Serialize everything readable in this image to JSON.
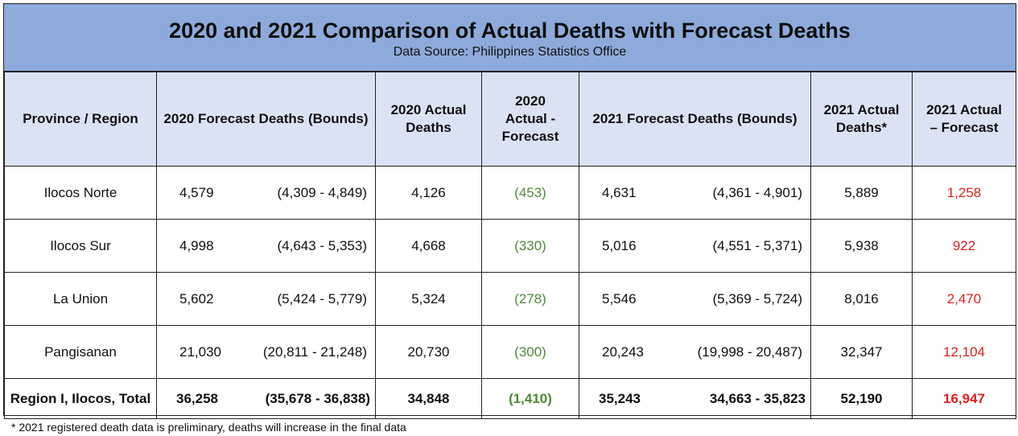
{
  "title": "2020 and 2021 Comparison of Actual Deaths with Forecast Deaths",
  "subtitle": "Data Source: Philippines Statistics Office",
  "headers": {
    "region": "Province / Region",
    "forecast_2020": "2020 Forecast Deaths (Bounds)",
    "actual_2020": "2020 Actual Deaths",
    "diff_2020": "2020 Actual - Forecast",
    "forecast_2021": "2021 Forecast  Deaths (Bounds)",
    "actual_2021": "2021 Actual Deaths*",
    "diff_2021": "2021 Actual – Forecast"
  },
  "rows": [
    {
      "region": "Ilocos Norte",
      "f2020": "4,579",
      "b2020": "(4,309  -  4,849)",
      "a2020": "4,126",
      "d2020": "(453)",
      "f2021": "4,631",
      "b2021": "(4,361  -  4,901)",
      "a2021": "5,889",
      "d2021": "1,258"
    },
    {
      "region": "Ilocos Sur",
      "f2020": "4,998",
      "b2020": "(4,643  -  5,353)",
      "a2020": "4,668",
      "d2020": "(330)",
      "f2021": "5,016",
      "b2021": "(4,551  -  5,371)",
      "a2021": "5,938",
      "d2021": "922"
    },
    {
      "region": "La Union",
      "f2020": "5,602",
      "b2020": "(5,424  -  5,779)",
      "a2020": "5,324",
      "d2020": "(278)",
      "f2021": "5,546",
      "b2021": "(5,369  -  5,724)",
      "a2021": "8,016",
      "d2021": "2,470"
    },
    {
      "region": "Pangisanan",
      "f2020": "21,030",
      "b2020": "(20,811  - 21,248)",
      "a2020": "20,730",
      "d2020": "(300)",
      "f2021": "20,243",
      "b2021": "(19,998  - 20,487)",
      "a2021": "32,347",
      "d2021": "12,104"
    }
  ],
  "total": {
    "region": "Region I, Ilocos, Total",
    "f2020": "36,258",
    "b2020": "(35,678 - 36,838)",
    "a2020": "34,848",
    "d2020": "(1,410)",
    "f2021": "35,243",
    "b2021": "34,663 - 35,823",
    "a2021": "52,190",
    "d2021": "16,947"
  },
  "footnote": "* 2021 registered death data is preliminary, deaths will increase in the final data",
  "colors": {
    "header_bg": "#8eaadb",
    "subheader_bg": "#dae3f3",
    "negative": "#4f8a3c",
    "positive": "#e02020"
  }
}
